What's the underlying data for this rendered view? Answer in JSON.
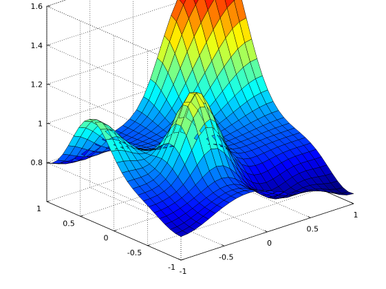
{
  "chart_data": {
    "type": "surface",
    "title": "",
    "xlabel": "",
    "ylabel": "",
    "zlabel": "",
    "colormap": "jet",
    "grid": true,
    "box": true,
    "xlim": [
      -1,
      1
    ],
    "ylim": [
      -1,
      1
    ],
    "zlim": [
      0.6,
      1.6
    ],
    "x_ticks": [
      -1,
      -0.5,
      0,
      0.5,
      1
    ],
    "x_tick_labels": [
      "-1",
      "-0.5",
      "0",
      "0.5",
      "1"
    ],
    "y_ticks": [
      -1,
      -0.5,
      0,
      0.5,
      1
    ],
    "y_tick_labels": [
      "-1",
      "-0.5",
      "0",
      "0.5",
      "1"
    ],
    "z_ticks": [
      0.8,
      1,
      1.2,
      1.4,
      1.6
    ],
    "z_tick_labels": [
      "0.8",
      "1",
      "1.2",
      "1.4",
      "1.6"
    ],
    "grid_n": 25,
    "approx_z_range": [
      0.66,
      1.58
    ],
    "notable_points": [
      {
        "x": 1,
        "y": 1,
        "z": 1.58,
        "note": "global maximum (back-right corner)"
      },
      {
        "x": -0.25,
        "y": -0.25,
        "z": 1.22,
        "note": "central local maximum"
      },
      {
        "x": -1,
        "y": -1,
        "z": 0.68,
        "note": "low left corner"
      },
      {
        "x": 1,
        "y": -1,
        "z": 0.66,
        "note": "low front-right corner"
      }
    ]
  }
}
